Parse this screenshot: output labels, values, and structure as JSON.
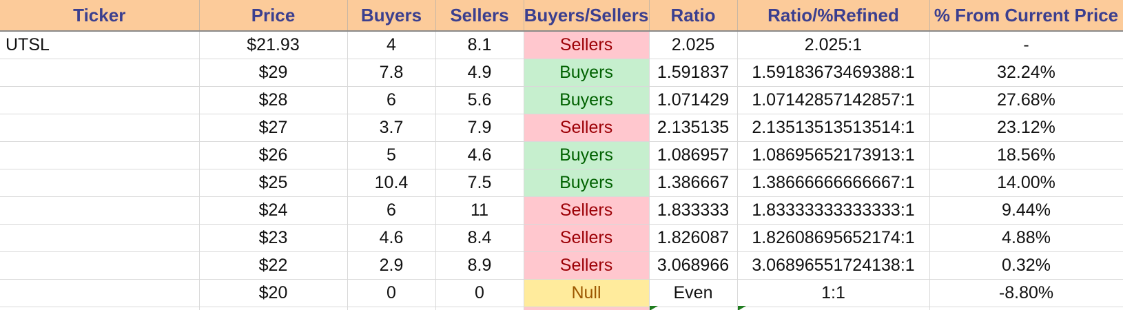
{
  "headers": {
    "ticker": "Ticker",
    "price": "Price",
    "buyers": "Buyers",
    "sellers": "Sellers",
    "buyers_sellers": "Buyers/Sellers",
    "ratio": "Ratio",
    "ratio_refined": "Ratio/%Refined",
    "pct_from_current": "% From Current Price"
  },
  "rows": [
    {
      "ticker": "UTSL",
      "price": "$21.93",
      "buyers": "4",
      "sellers": "8.1",
      "bs": "Sellers",
      "ratio": "2.025",
      "refined": "2.025:1",
      "pct": "-"
    },
    {
      "ticker": "",
      "price": "$29",
      "buyers": "7.8",
      "sellers": "4.9",
      "bs": "Buyers",
      "ratio": "1.591837",
      "refined": "1.59183673469388:1",
      "pct": "32.24%"
    },
    {
      "ticker": "",
      "price": "$28",
      "buyers": "6",
      "sellers": "5.6",
      "bs": "Buyers",
      "ratio": "1.071429",
      "refined": "1.07142857142857:1",
      "pct": "27.68%"
    },
    {
      "ticker": "",
      "price": "$27",
      "buyers": "3.7",
      "sellers": "7.9",
      "bs": "Sellers",
      "ratio": "2.135135",
      "refined": "2.13513513513514:1",
      "pct": "23.12%"
    },
    {
      "ticker": "",
      "price": "$26",
      "buyers": "5",
      "sellers": "4.6",
      "bs": "Buyers",
      "ratio": "1.086957",
      "refined": "1.08695652173913:1",
      "pct": "18.56%"
    },
    {
      "ticker": "",
      "price": "$25",
      "buyers": "10.4",
      "sellers": "7.5",
      "bs": "Buyers",
      "ratio": "1.386667",
      "refined": "1.38666666666667:1",
      "pct": "14.00%"
    },
    {
      "ticker": "",
      "price": "$24",
      "buyers": "6",
      "sellers": "11",
      "bs": "Sellers",
      "ratio": "1.833333",
      "refined": "1.83333333333333:1",
      "pct": "9.44%"
    },
    {
      "ticker": "",
      "price": "$23",
      "buyers": "4.6",
      "sellers": "8.4",
      "bs": "Sellers",
      "ratio": "1.826087",
      "refined": "1.82608695652174:1",
      "pct": "4.88%"
    },
    {
      "ticker": "",
      "price": "$22",
      "buyers": "2.9",
      "sellers": "8.9",
      "bs": "Sellers",
      "ratio": "3.068966",
      "refined": "3.06896551724138:1",
      "pct": "0.32%"
    },
    {
      "ticker": "",
      "price": "$20",
      "buyers": "0",
      "sellers": "0",
      "bs": "Null",
      "ratio": "Even",
      "refined": "1:1",
      "pct": "-8.80%"
    }
  ],
  "status_colors": {
    "Sellers": "#ffc7ce",
    "Buyers": "#c6efce",
    "Null": "#ffeb9c",
    "header_bg": "#fccb9a",
    "header_text": "#3b3f8f"
  }
}
